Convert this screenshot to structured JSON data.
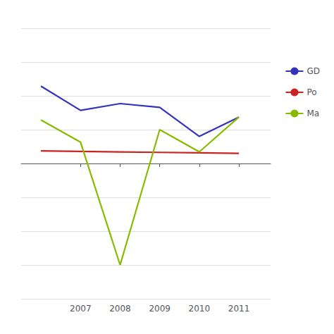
{
  "chart_data": {
    "type": "line",
    "x": [
      2006,
      2007,
      2008,
      2009,
      2010,
      2011
    ],
    "series": [
      {
        "name": "GD",
        "color": "#3333bb",
        "values": [
          8.0,
          5.5,
          6.2,
          5.8,
          2.8,
          4.8
        ]
      },
      {
        "name": "Po",
        "color": "#cc2222",
        "values": [
          1.3,
          1.25,
          1.2,
          1.15,
          1.1,
          1.05
        ]
      },
      {
        "name": "Ma",
        "color": "#88bb00",
        "values": [
          4.5,
          2.2,
          -10.5,
          3.5,
          1.2,
          4.8
        ]
      }
    ],
    "xlim": [
      2005.5,
      2011.8
    ],
    "xticks": [
      2007,
      2008,
      2009,
      2010,
      2011
    ],
    "ylim": [
      -14,
      14
    ],
    "yticks": [
      -14,
      -10.5,
      -7,
      -3.5,
      0,
      3.5,
      7,
      10.5,
      14
    ],
    "grid": true,
    "tick_labels": "x",
    "legend": "right"
  }
}
